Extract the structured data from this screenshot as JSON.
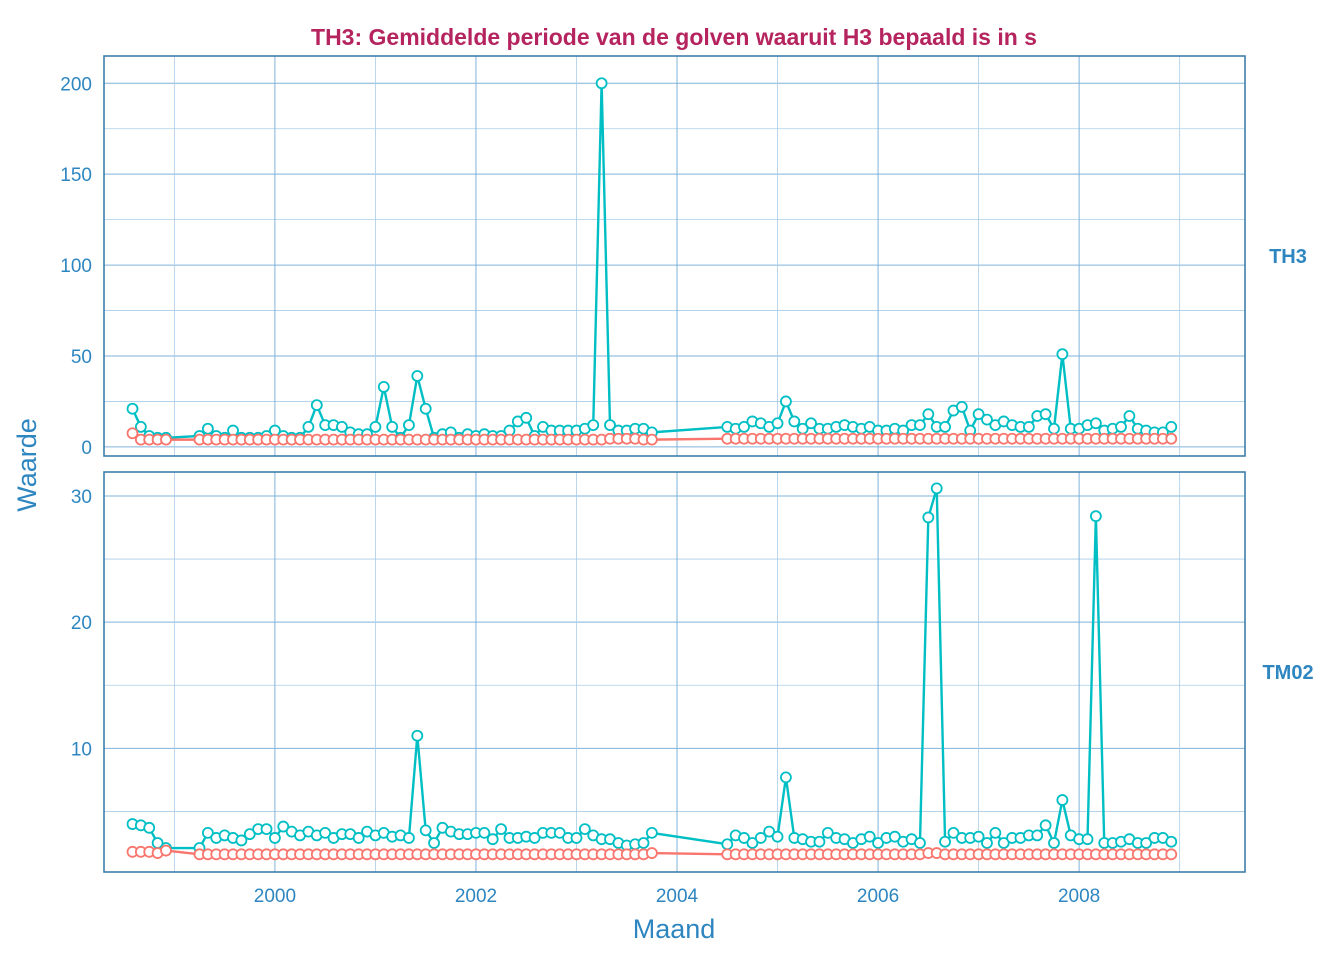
{
  "chart_data": {
    "type": "line",
    "title": "TH3: Gemiddelde periode van de golven waaruit H3 bepaald is in s",
    "xlabel": "Maand",
    "ylabel": "Waarde",
    "x_start": "1998-08",
    "x_frequency": "monthly",
    "x_ticks": [
      2000,
      2002,
      2004,
      2006,
      2008
    ],
    "x_tick_labels": [
      "2000",
      "2002",
      "2004",
      "2006",
      "2008"
    ],
    "xlim": [
      1998.3,
      2009.65
    ],
    "series_colors": [
      "#00bfc4",
      "#f8766d"
    ],
    "grid": true,
    "legend": "none",
    "panels": [
      {
        "strip_label": "TH3",
        "ylim": [
          -5,
          215
        ],
        "y_ticks": [
          0,
          50,
          100,
          150,
          200
        ],
        "y_tick_labels": [
          "0",
          "50",
          "100",
          "150",
          "200"
        ],
        "series": [
          {
            "color": "#00bfc4",
            "values": [
              21,
              11,
              6,
              5,
              5,
              null,
              null,
              null,
              6,
              10,
              6,
              5,
              9,
              5,
              5,
              5,
              6,
              9,
              6,
              5,
              5,
              11,
              23,
              12,
              12,
              11,
              8,
              7,
              7,
              11,
              33,
              11,
              5,
              12,
              39,
              21,
              5,
              7,
              8,
              5,
              7,
              6,
              7,
              6,
              6,
              9,
              14,
              16,
              6,
              11,
              9,
              9,
              9,
              9,
              10,
              12,
              200,
              12,
              9,
              9,
              10,
              10,
              8,
              null,
              null,
              null,
              null,
              null,
              null,
              null,
              null,
              11,
              10,
              11,
              14,
              13,
              11,
              13,
              25,
              14,
              10,
              13,
              10,
              10,
              11,
              12,
              11,
              10,
              11,
              9,
              9,
              10,
              9,
              12,
              12,
              18,
              11,
              11,
              20,
              22,
              9,
              18,
              15,
              12,
              14,
              12,
              11,
              11,
              17,
              18,
              10,
              51,
              10,
              10,
              12,
              13,
              9,
              10,
              11,
              17,
              10,
              9,
              8,
              8,
              11
            ]
          },
          {
            "color": "#f8766d",
            "values": [
              7.5,
              4,
              4,
              4,
              4,
              null,
              null,
              null,
              4,
              4,
              4,
              4,
              4,
              4,
              4,
              4,
              4,
              4,
              4,
              4,
              4,
              4,
              4,
              4,
              4,
              4,
              4,
              4,
              4,
              4,
              4,
              4,
              4,
              4,
              4,
              4,
              4,
              4,
              4,
              4,
              4,
              4,
              4,
              4,
              4,
              4,
              4,
              4,
              4,
              4,
              4,
              4,
              4,
              4,
              4,
              4,
              4,
              4.5,
              4.5,
              4.5,
              4.5,
              4,
              4,
              null,
              null,
              null,
              null,
              null,
              null,
              null,
              null,
              4.5,
              4.5,
              4.5,
              4.5,
              4.5,
              4.5,
              4.5,
              4.5,
              4.5,
              4.5,
              4.5,
              4.5,
              4.5,
              4.5,
              4.5,
              4.5,
              4.5,
              4.5,
              4.5,
              4.5,
              4.5,
              4.5,
              4.5,
              4.5,
              4.5,
              4.5,
              4.5,
              4.5,
              4.5,
              4.5,
              4.5,
              4.5,
              4.5,
              4.5,
              4.5,
              4.5,
              4.5,
              4.5,
              4.5,
              4.5,
              4.5,
              4.5,
              4.5,
              4.5,
              4.5,
              4.5,
              4.5,
              4.5,
              4.5,
              4.5,
              4.5,
              4.5,
              4.5,
              4.5
            ]
          }
        ]
      },
      {
        "strip_label": "TM02",
        "ylim": [
          0.2,
          31.9
        ],
        "y_ticks": [
          10,
          20,
          30
        ],
        "y_tick_labels": [
          "10",
          "20",
          "30"
        ],
        "series": [
          {
            "color": "#00bfc4",
            "values": [
              4.0,
              3.9,
              3.7,
              2.5,
              2.1,
              null,
              null,
              null,
              2.1,
              3.3,
              2.9,
              3.1,
              2.9,
              2.7,
              3.2,
              3.6,
              3.6,
              2.9,
              3.8,
              3.4,
              3.1,
              3.4,
              3.1,
              3.3,
              2.9,
              3.2,
              3.2,
              2.9,
              3.4,
              3.1,
              3.3,
              3.0,
              3.1,
              2.9,
              11.0,
              3.5,
              2.5,
              3.7,
              3.4,
              3.2,
              3.2,
              3.3,
              3.3,
              2.8,
              3.6,
              2.9,
              2.9,
              3.0,
              2.9,
              3.3,
              3.3,
              3.3,
              2.9,
              2.9,
              3.6,
              3.1,
              2.8,
              2.8,
              2.5,
              2.3,
              2.4,
              2.5,
              3.3,
              null,
              null,
              null,
              null,
              null,
              null,
              null,
              null,
              2.4,
              3.1,
              2.9,
              2.5,
              2.9,
              3.4,
              3.0,
              7.7,
              2.9,
              2.8,
              2.6,
              2.6,
              3.3,
              2.9,
              2.8,
              2.5,
              2.8,
              3.0,
              2.5,
              2.9,
              3.0,
              2.6,
              2.8,
              2.5,
              28.3,
              30.6,
              2.6,
              3.3,
              2.9,
              2.9,
              3.0,
              2.5,
              3.3,
              2.5,
              2.9,
              2.9,
              3.1,
              3.1,
              3.9,
              2.5,
              5.9,
              3.1,
              2.8,
              2.8,
              28.4,
              2.5,
              2.5,
              2.6,
              2.8,
              2.5,
              2.5,
              2.9,
              2.9,
              2.6
            ]
          },
          {
            "color": "#f8766d",
            "values": [
              1.8,
              1.8,
              1.8,
              1.7,
              1.9,
              null,
              null,
              null,
              1.6,
              1.6,
              1.6,
              1.6,
              1.6,
              1.6,
              1.6,
              1.6,
              1.6,
              1.6,
              1.6,
              1.6,
              1.6,
              1.6,
              1.6,
              1.6,
              1.6,
              1.6,
              1.6,
              1.6,
              1.6,
              1.6,
              1.6,
              1.6,
              1.6,
              1.6,
              1.6,
              1.6,
              1.6,
              1.6,
              1.6,
              1.6,
              1.6,
              1.6,
              1.6,
              1.6,
              1.6,
              1.6,
              1.6,
              1.6,
              1.6,
              1.6,
              1.6,
              1.6,
              1.6,
              1.6,
              1.6,
              1.6,
              1.6,
              1.6,
              1.6,
              1.6,
              1.6,
              1.6,
              1.7,
              null,
              null,
              null,
              null,
              null,
              null,
              null,
              null,
              1.6,
              1.6,
              1.6,
              1.6,
              1.6,
              1.6,
              1.6,
              1.6,
              1.6,
              1.6,
              1.6,
              1.6,
              1.6,
              1.6,
              1.6,
              1.6,
              1.6,
              1.6,
              1.6,
              1.6,
              1.6,
              1.6,
              1.6,
              1.6,
              1.7,
              1.7,
              1.6,
              1.6,
              1.6,
              1.6,
              1.6,
              1.6,
              1.6,
              1.6,
              1.6,
              1.6,
              1.6,
              1.6,
              1.6,
              1.6,
              1.6,
              1.6,
              1.6,
              1.6,
              1.6,
              1.6,
              1.6,
              1.6,
              1.6,
              1.6,
              1.6,
              1.6,
              1.6,
              1.6
            ]
          }
        ]
      }
    ]
  }
}
